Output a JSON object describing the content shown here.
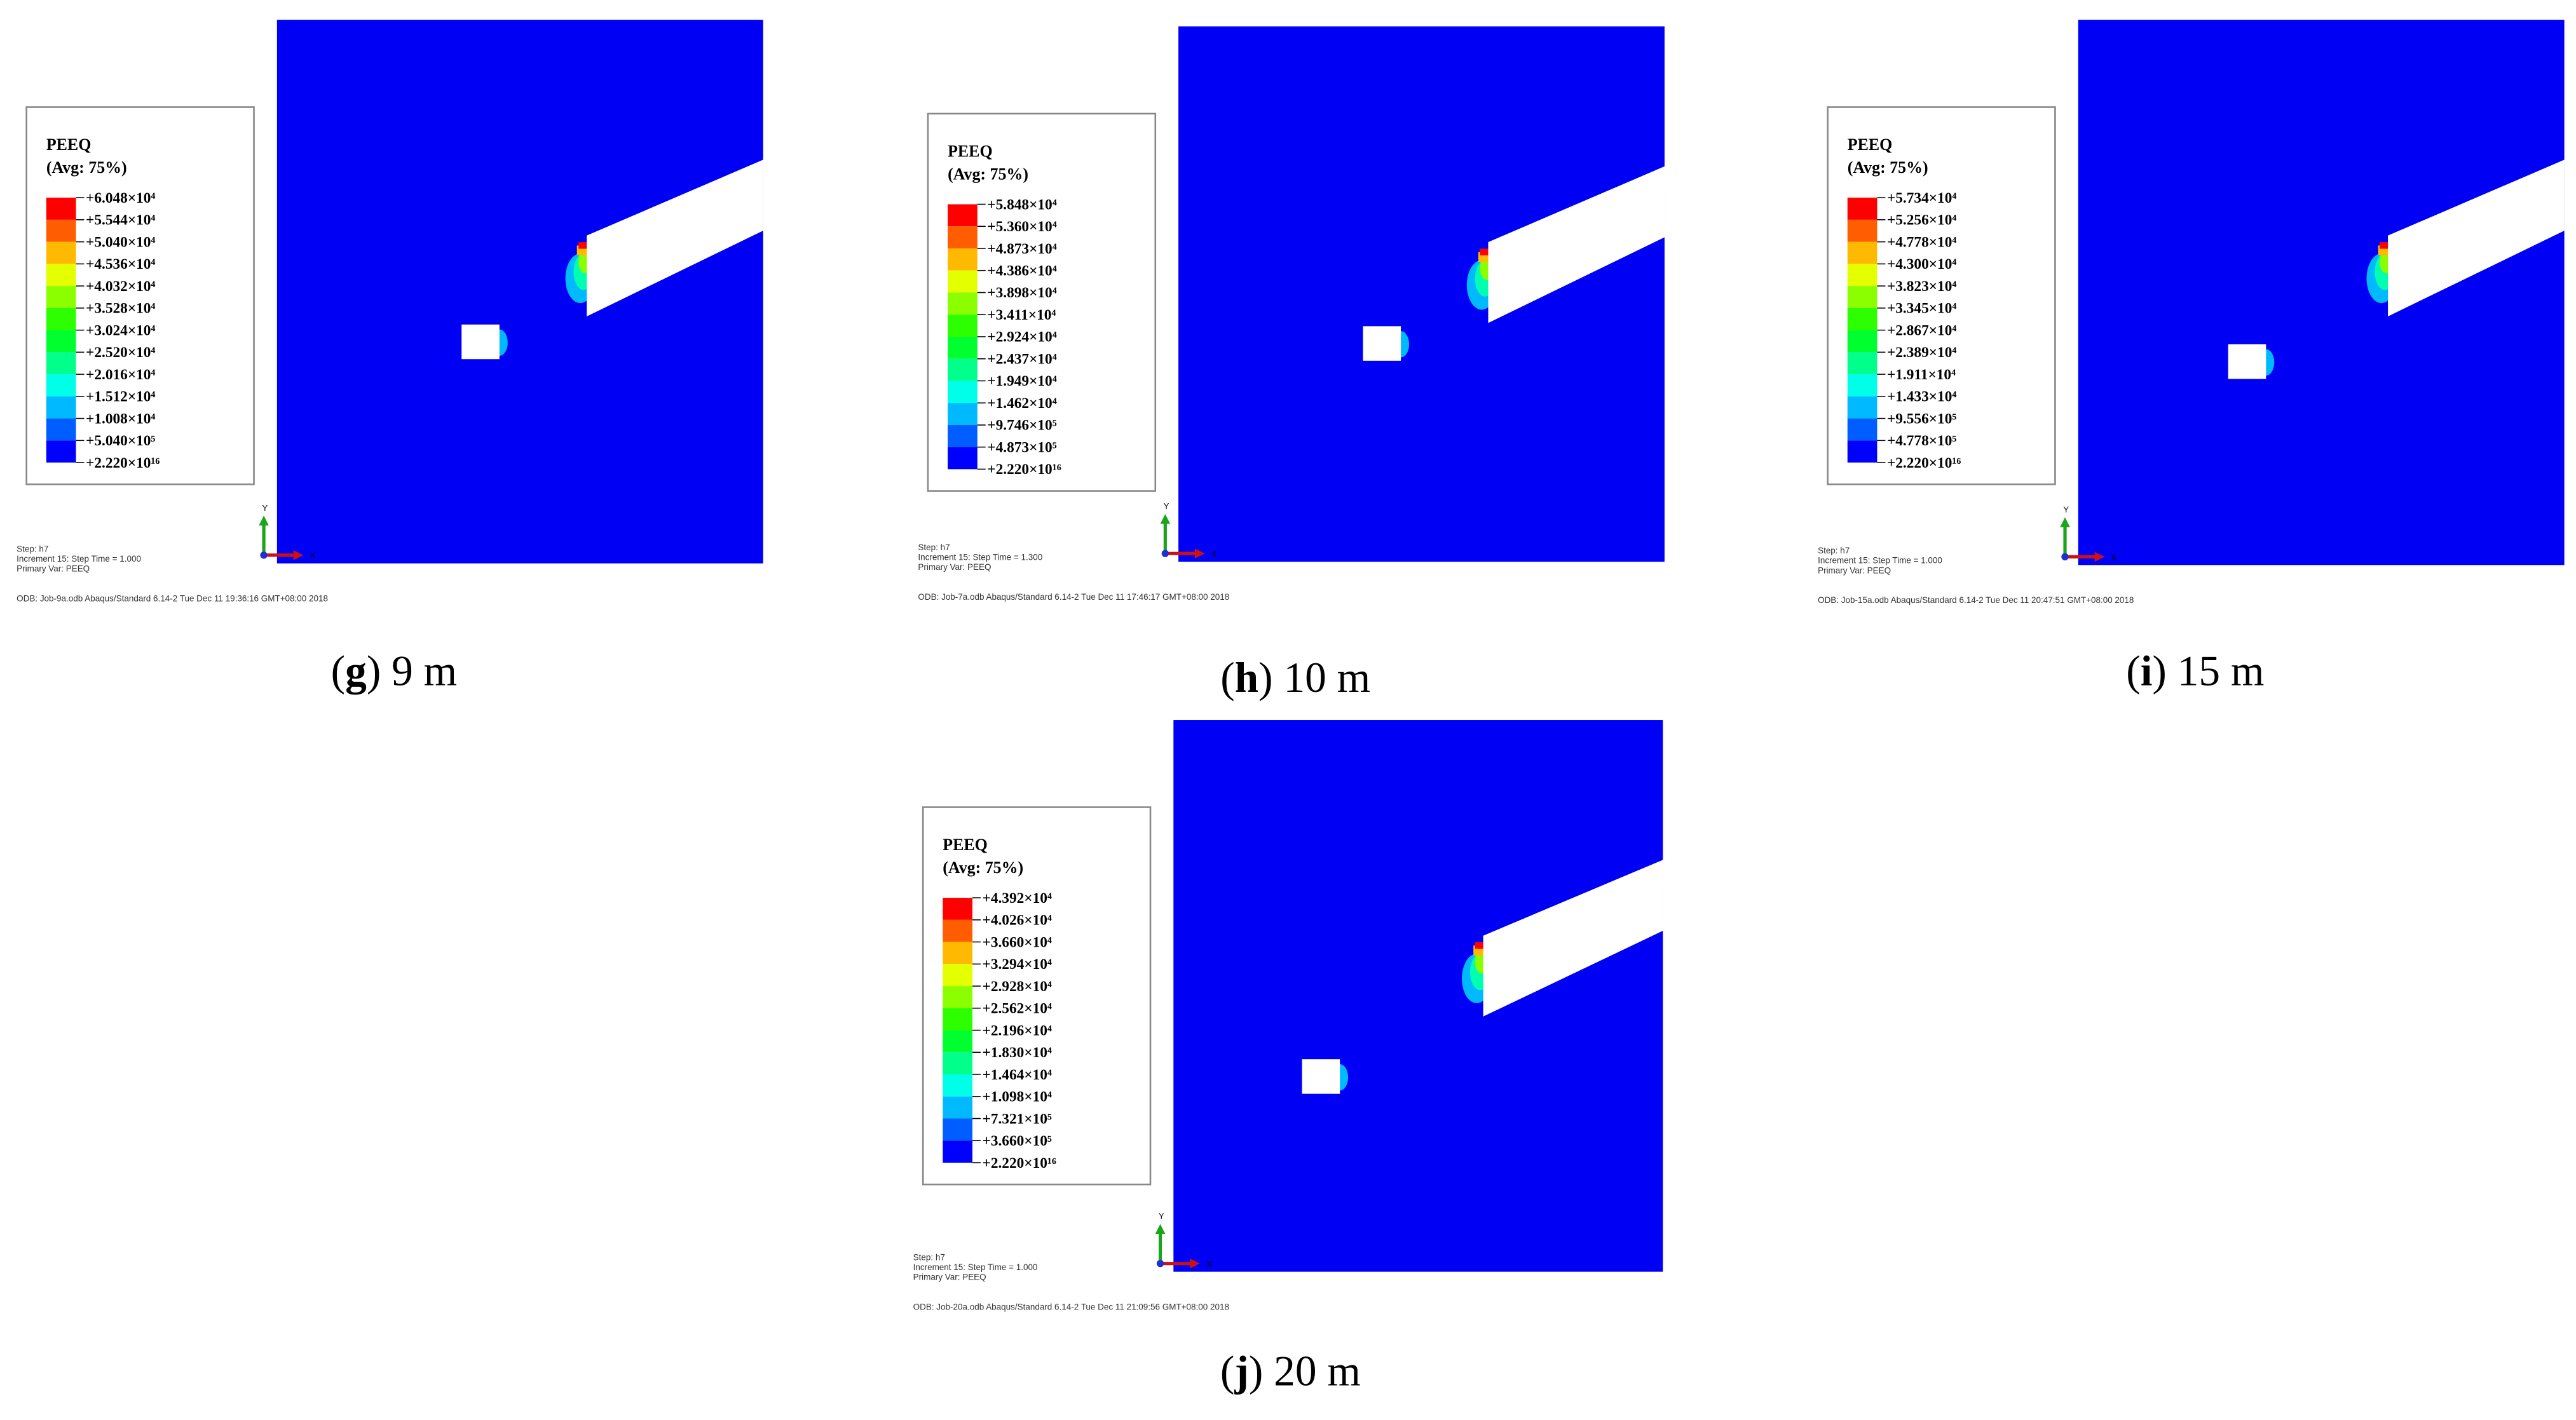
{
  "legend_colors": [
    "#ff0000",
    "#ff5d00",
    "#ffb900",
    "#e3ff00",
    "#8bff00",
    "#2eff00",
    "#00ff2e",
    "#00ff8b",
    "#00ffe8",
    "#00b9ff",
    "#005dff",
    "#0000ff"
  ],
  "panels": [
    {
      "legend": {
        "title": "PEEQ",
        "subtitle": "(Avg: 75%)",
        "labels": [
          "+6.048×10⁴",
          "+5.544×10⁴",
          "+5.040×10⁴",
          "+4.536×10⁴",
          "+4.032×10⁴",
          "+3.528×10⁴",
          "+3.024×10⁴",
          "+2.520×10⁴",
          "+2.016×10⁴",
          "+1.512×10⁴",
          "+1.008×10⁴",
          "+5.040×10⁵",
          "+2.220×10¹⁶"
        ]
      },
      "info": {
        "step": "Step: h7",
        "increment": "Increment    15: Step Time =    1.000",
        "variable": "Primary Var: PEEQ",
        "odb": "ODB: Job-9a.odb    Abaqus/Standard 6.14-2    Tue Dec 11 19:36:16 GMT+08:00 2018"
      },
      "axes": {
        "y": "Y",
        "x": "X"
      },
      "caption": {
        "open": "(",
        "letter": "g",
        "rest": ") 9 m"
      }
    },
    {
      "legend": {
        "title": "PEEQ",
        "subtitle": "(Avg: 75%)",
        "labels": [
          "+5.848×10⁴",
          "+5.360×10⁴",
          "+4.873×10⁴",
          "+4.386×10⁴",
          "+3.898×10⁴",
          "+3.411×10⁴",
          "+2.924×10⁴",
          "+2.437×10⁴",
          "+1.949×10⁴",
          "+1.462×10⁴",
          "+9.746×10⁵",
          "+4.873×10⁵",
          "+2.220×10¹⁶"
        ]
      },
      "info": {
        "step": "Step: h7",
        "increment": "Increment    15: Step Time =    1.300",
        "variable": "Primary Var: PEEQ",
        "odb": "ODB: Job-7a.odb    Abaqus/Standard 6.14-2    Tue Dec 11 17:46:17 GMT+08:00 2018"
      },
      "axes": {
        "y": "Y",
        "x": "X"
      },
      "caption": {
        "open": "(",
        "letter": "h",
        "rest": ") 10 m"
      }
    },
    {
      "legend": {
        "title": "PEEQ",
        "subtitle": "(Avg: 75%)",
        "labels": [
          "+5.734×10⁴",
          "+5.256×10⁴",
          "+4.778×10⁴",
          "+4.300×10⁴",
          "+3.823×10⁴",
          "+3.345×10⁴",
          "+2.867×10⁴",
          "+2.389×10⁴",
          "+1.911×10⁴",
          "+1.433×10⁴",
          "+9.556×10⁵",
          "+4.778×10⁵",
          "+2.220×10¹⁶"
        ]
      },
      "info": {
        "step": "Step: h7",
        "increment": "Increment    15: Step Time =    1.000",
        "variable": "Primary Var: PEEQ",
        "odb": "ODB: Job-15a.odb    Abaqus/Standard 6.14-2    Tue Dec 11 20:47:51 GMT+08:00 2018"
      },
      "axes": {
        "y": "Y",
        "x": "X"
      },
      "caption": {
        "open": "(",
        "letter": "i",
        "rest": ") 15 m"
      }
    },
    {
      "legend": {
        "title": "PEEQ",
        "subtitle": "(Avg: 75%)",
        "labels": [
          "+4.392×10⁴",
          "+4.026×10⁴",
          "+3.660×10⁴",
          "+3.294×10⁴",
          "+2.928×10⁴",
          "+2.562×10⁴",
          "+2.196×10⁴",
          "+1.830×10⁴",
          "+1.464×10⁴",
          "+1.098×10⁴",
          "+7.321×10⁵",
          "+3.660×10⁵",
          "+2.220×10¹⁶"
        ]
      },
      "info": {
        "step": "Step: h7",
        "increment": "Increment    15: Step Time =    1.000",
        "variable": "Primary Var: PEEQ",
        "odb": "ODB: Job-20a.odb    Abaqus/Standard 6.14-2    Tue Dec 11 21:09:56 GMT+08:00 2018"
      },
      "axes": {
        "y": "Y",
        "x": "X"
      },
      "caption": {
        "open": "(",
        "letter": "j",
        "rest": ") 20 m"
      }
    }
  ]
}
